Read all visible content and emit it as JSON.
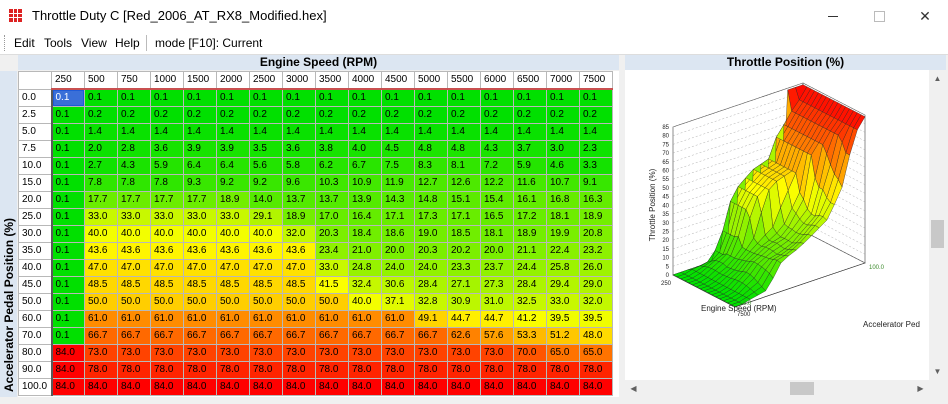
{
  "window": {
    "title": "Throttle Duty C [Red_2006_AT_RX8_Modified.hex]",
    "min_glyph": "—",
    "max_glyph": "☐",
    "close_glyph": "✕"
  },
  "menu": {
    "items": [
      "Edit",
      "Tools",
      "View",
      "Help"
    ],
    "mode": "mode [F10]: Current"
  },
  "table": {
    "x_axis_title": "Engine Speed (RPM)",
    "y_axis_title": "Accelerator Pedal Position (%)",
    "columns": [
      "250",
      "500",
      "750",
      "1000",
      "1500",
      "2000",
      "2500",
      "3000",
      "3500",
      "4000",
      "4500",
      "5000",
      "5500",
      "6000",
      "6500",
      "7000",
      "7500"
    ],
    "rows": [
      "0.0",
      "2.5",
      "5.0",
      "7.5",
      "10.0",
      "15.0",
      "20.0",
      "25.0",
      "30.0",
      "35.0",
      "40.0",
      "45.0",
      "50.0",
      "60.0",
      "70.0",
      "80.0",
      "90.0",
      "100.0"
    ],
    "values": [
      [
        "0.1",
        "0.1",
        "0.1",
        "0.1",
        "0.1",
        "0.1",
        "0.1",
        "0.1",
        "0.1",
        "0.1",
        "0.1",
        "0.1",
        "0.1",
        "0.1",
        "0.1",
        "0.1",
        "0.1"
      ],
      [
        "0.1",
        "0.2",
        "0.2",
        "0.2",
        "0.2",
        "0.2",
        "0.2",
        "0.2",
        "0.2",
        "0.2",
        "0.2",
        "0.2",
        "0.2",
        "0.2",
        "0.2",
        "0.2",
        "0.2"
      ],
      [
        "0.1",
        "1.4",
        "1.4",
        "1.4",
        "1.4",
        "1.4",
        "1.4",
        "1.4",
        "1.4",
        "1.4",
        "1.4",
        "1.4",
        "1.4",
        "1.4",
        "1.4",
        "1.4",
        "1.4"
      ],
      [
        "0.1",
        "2.0",
        "2.8",
        "3.6",
        "3.9",
        "3.9",
        "3.5",
        "3.6",
        "3.8",
        "4.0",
        "4.5",
        "4.8",
        "4.8",
        "4.3",
        "3.7",
        "3.0",
        "2.3"
      ],
      [
        "0.1",
        "2.7",
        "4.3",
        "5.9",
        "6.4",
        "6.4",
        "5.6",
        "5.8",
        "6.2",
        "6.7",
        "7.5",
        "8.3",
        "8.1",
        "7.2",
        "5.9",
        "4.6",
        "3.3"
      ],
      [
        "0.1",
        "7.8",
        "7.8",
        "7.8",
        "9.3",
        "9.2",
        "9.2",
        "9.6",
        "10.3",
        "10.9",
        "11.9",
        "12.7",
        "12.6",
        "12.2",
        "11.6",
        "10.7",
        "9.1"
      ],
      [
        "0.1",
        "17.7",
        "17.7",
        "17.7",
        "17.7",
        "18.9",
        "14.0",
        "13.7",
        "13.7",
        "13.9",
        "14.3",
        "14.8",
        "15.1",
        "15.4",
        "16.1",
        "16.8",
        "16.3"
      ],
      [
        "0.1",
        "33.0",
        "33.0",
        "33.0",
        "33.0",
        "33.0",
        "29.1",
        "18.9",
        "17.0",
        "16.4",
        "17.1",
        "17.3",
        "17.1",
        "16.5",
        "17.2",
        "18.1",
        "18.9"
      ],
      [
        "0.1",
        "40.0",
        "40.0",
        "40.0",
        "40.0",
        "40.0",
        "40.0",
        "32.0",
        "20.3",
        "18.4",
        "18.6",
        "19.0",
        "18.5",
        "18.1",
        "18.9",
        "19.9",
        "20.8"
      ],
      [
        "0.1",
        "43.6",
        "43.6",
        "43.6",
        "43.6",
        "43.6",
        "43.6",
        "43.6",
        "23.4",
        "21.0",
        "20.0",
        "20.3",
        "20.2",
        "20.0",
        "21.1",
        "22.4",
        "23.2"
      ],
      [
        "0.1",
        "47.0",
        "47.0",
        "47.0",
        "47.0",
        "47.0",
        "47.0",
        "47.0",
        "33.0",
        "24.8",
        "24.0",
        "24.0",
        "23.3",
        "23.7",
        "24.4",
        "25.8",
        "26.0"
      ],
      [
        "0.1",
        "48.5",
        "48.5",
        "48.5",
        "48.5",
        "48.5",
        "48.5",
        "48.5",
        "41.5",
        "32.4",
        "30.6",
        "28.4",
        "27.1",
        "27.3",
        "28.4",
        "29.4",
        "29.0"
      ],
      [
        "0.1",
        "50.0",
        "50.0",
        "50.0",
        "50.0",
        "50.0",
        "50.0",
        "50.0",
        "50.0",
        "40.0",
        "37.1",
        "32.8",
        "30.9",
        "31.0",
        "32.5",
        "33.0",
        "32.0"
      ],
      [
        "0.1",
        "61.0",
        "61.0",
        "61.0",
        "61.0",
        "61.0",
        "61.0",
        "61.0",
        "61.0",
        "61.0",
        "61.0",
        "49.1",
        "44.7",
        "44.7",
        "41.2",
        "39.5",
        "39.5"
      ],
      [
        "0.1",
        "66.7",
        "66.7",
        "66.7",
        "66.7",
        "66.7",
        "66.7",
        "66.7",
        "66.7",
        "66.7",
        "66.7",
        "66.7",
        "62.6",
        "57.6",
        "53.3",
        "51.2",
        "48.0"
      ],
      [
        "84.0",
        "73.0",
        "73.0",
        "73.0",
        "73.0",
        "73.0",
        "73.0",
        "73.0",
        "73.0",
        "73.0",
        "73.0",
        "73.0",
        "73.0",
        "73.0",
        "70.0",
        "65.0",
        "65.0"
      ],
      [
        "84.0",
        "78.0",
        "78.0",
        "78.0",
        "78.0",
        "78.0",
        "78.0",
        "78.0",
        "78.0",
        "78.0",
        "78.0",
        "78.0",
        "78.0",
        "78.0",
        "78.0",
        "78.0",
        "78.0"
      ],
      [
        "84.0",
        "84.0",
        "84.0",
        "84.0",
        "84.0",
        "84.0",
        "84.0",
        "84.0",
        "84.0",
        "84.0",
        "84.0",
        "84.0",
        "84.0",
        "84.0",
        "84.0",
        "84.0",
        "84.0"
      ]
    ],
    "selected_cell": "0.1"
  },
  "chart": {
    "panel_title": "Throttle Position (%)",
    "z_axis_label": "Throttle Position (%)",
    "x_axis_label": "Engine Speed (RPM)",
    "y_axis_label": "Accelerator Ped",
    "z_ticks": [
      "0",
      "5",
      "10",
      "15",
      "20",
      "25",
      "30",
      "35",
      "40",
      "45",
      "50",
      "55",
      "60",
      "65",
      "70",
      "75",
      "80",
      "85"
    ],
    "x_tick_start": "250",
    "x_tick_end": "7500",
    "y_tick_start": "0.0",
    "y_tick_end": "100.0"
  },
  "colors": {
    "low": "#00e000",
    "mid": "#ffff00",
    "high": "#ff0000",
    "header_bg": "#dce6f2"
  }
}
